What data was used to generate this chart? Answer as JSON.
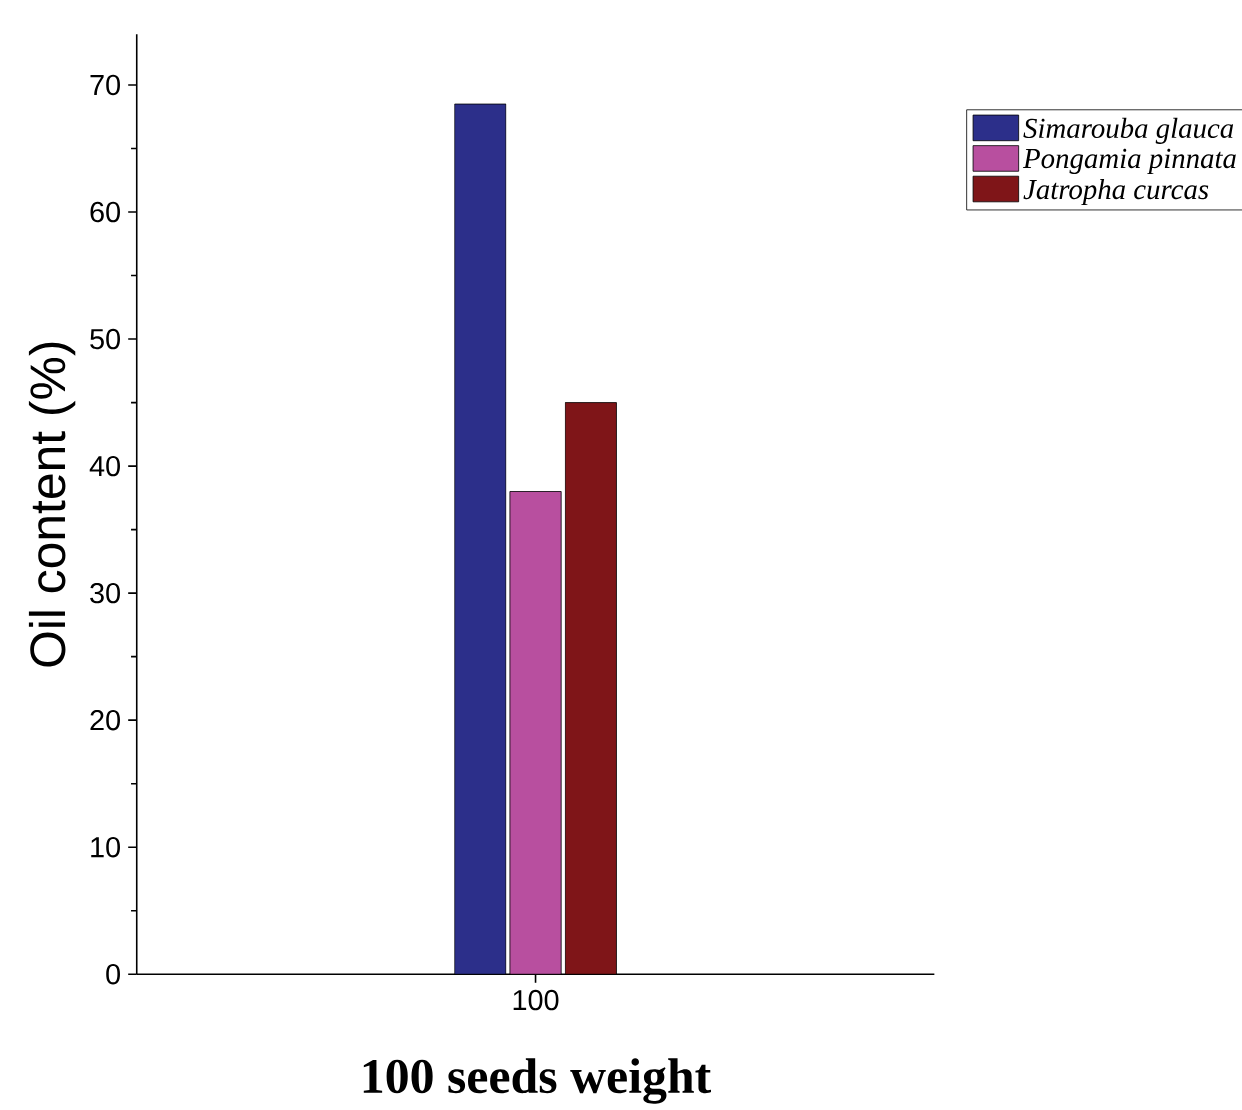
{
  "chart_data": {
    "type": "bar",
    "xlabel": "100 seeds weight",
    "ylabel": "Oil content (%)",
    "categories": [
      "100"
    ],
    "series": [
      {
        "name": "*Simarouba glauca*",
        "color": "#2c2f8a",
        "values": [
          68.5
        ]
      },
      {
        "name": "*Pongamia pinnata*",
        "color": "#b84f9f",
        "values": [
          38
        ]
      },
      {
        "name": "*Jatropha curcas*",
        "color": "#7f1518",
        "values": [
          45
        ]
      }
    ],
    "ylim": [
      0,
      74
    ],
    "yticks": [
      0,
      10,
      20,
      30,
      40,
      50,
      60,
      70
    ],
    "grid": false,
    "legend": "right"
  }
}
